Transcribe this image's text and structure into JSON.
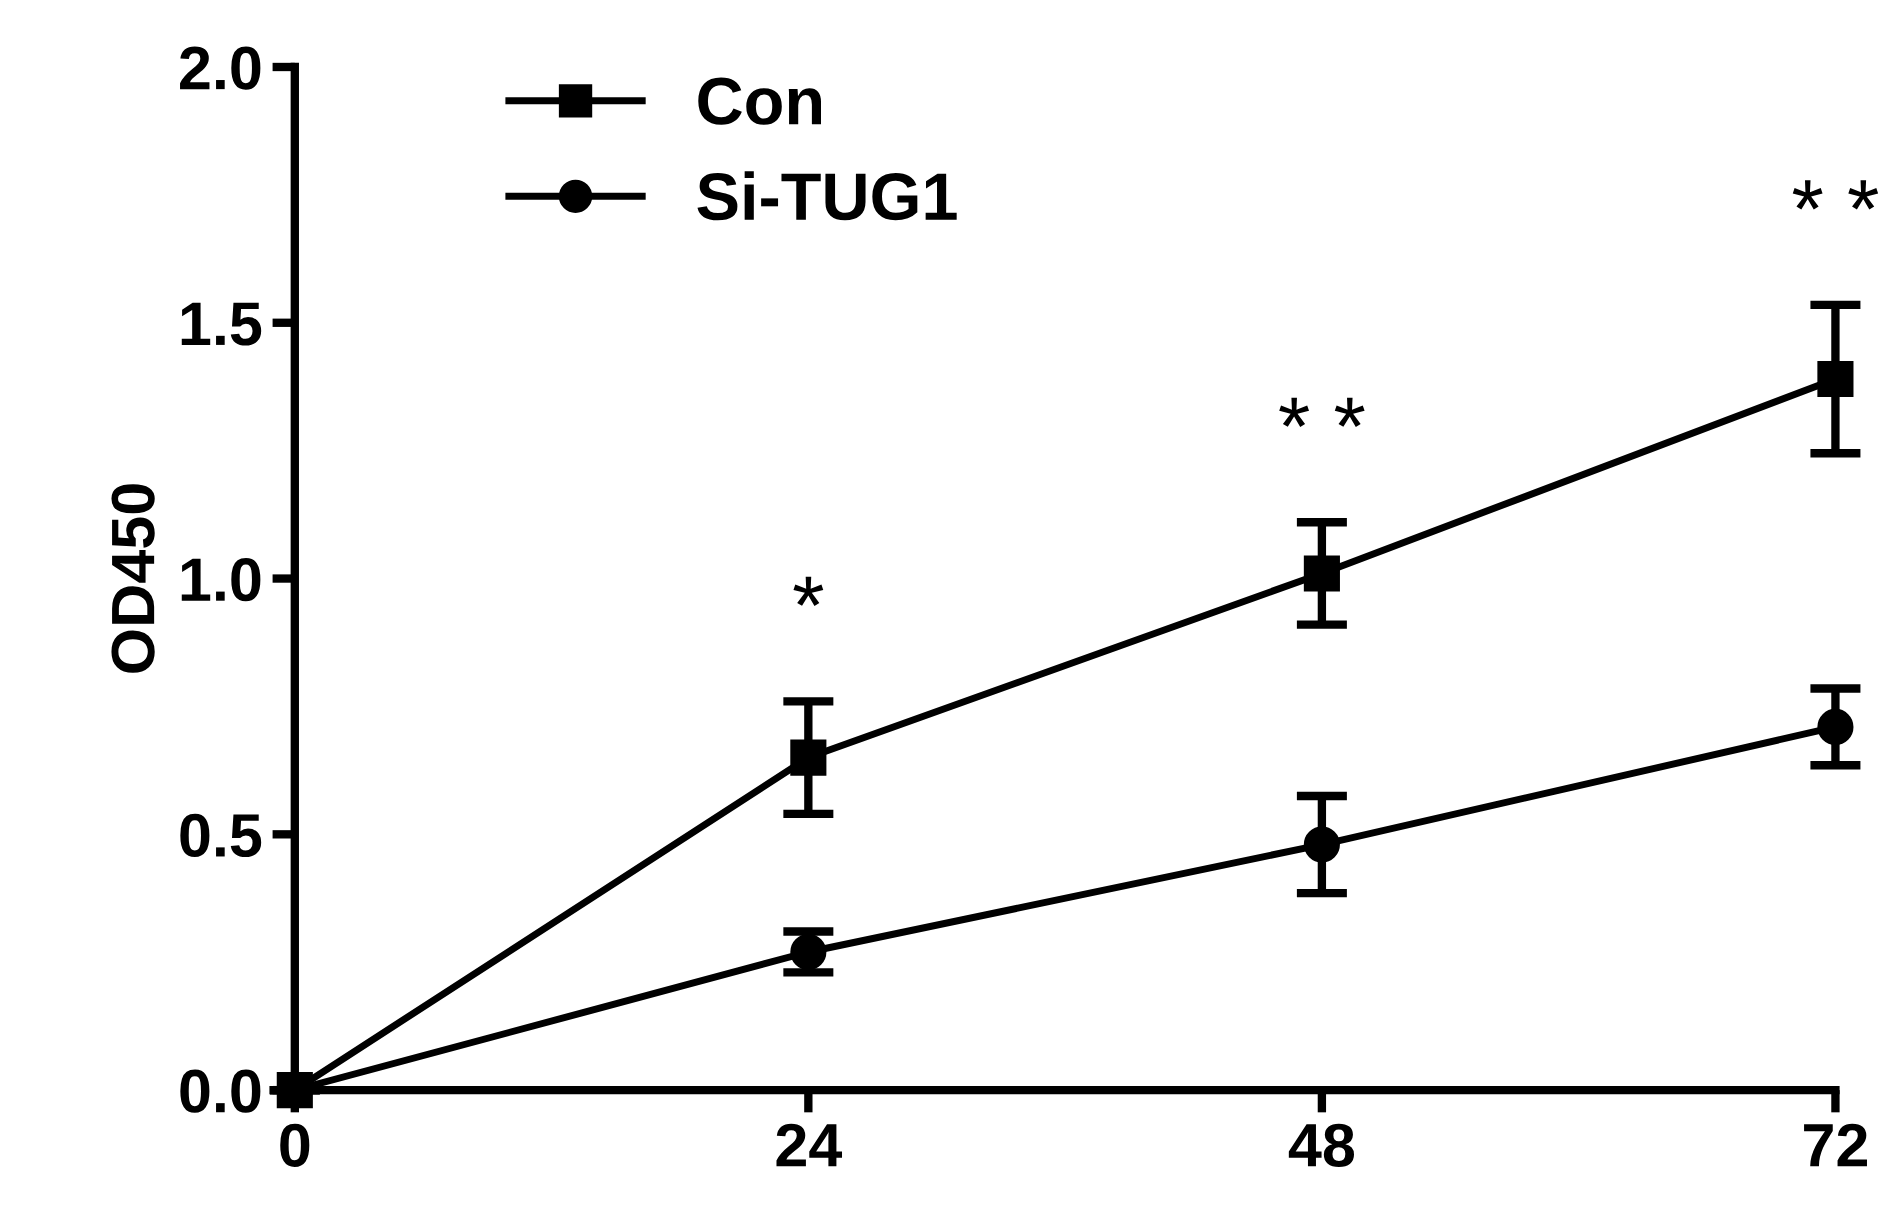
{
  "chart_data": {
    "type": "line",
    "ylabel": "OD450",
    "x": [
      0,
      24,
      48,
      72
    ],
    "series": [
      {
        "name": "Con",
        "color": "#000000",
        "marker": "square",
        "values": [
          0,
          0.65,
          1.01,
          1.39
        ],
        "errors": [
          null,
          0.11,
          0.1,
          0.145
        ]
      },
      {
        "name": "Si-TUG1",
        "color": "#000000",
        "marker": "circle",
        "values": [
          0,
          0.27,
          0.48,
          0.71
        ],
        "errors": [
          null,
          0.04,
          0.095,
          0.075
        ]
      }
    ],
    "annotations": [
      "*",
      "* *",
      "* *"
    ],
    "xlim": [
      0,
      72
    ],
    "xticks": [
      0,
      24,
      48,
      72
    ],
    "ylim": [
      0,
      2
    ],
    "yticks": [
      {
        "value": 0,
        "label": "0.0"
      },
      0.5,
      {
        "value": 1,
        "label": "1.0"
      },
      1.5,
      {
        "value": 2,
        "label": "2.0"
      }
    ],
    "grid": false,
    "legend": "top left",
    "line_style": "solid"
  }
}
